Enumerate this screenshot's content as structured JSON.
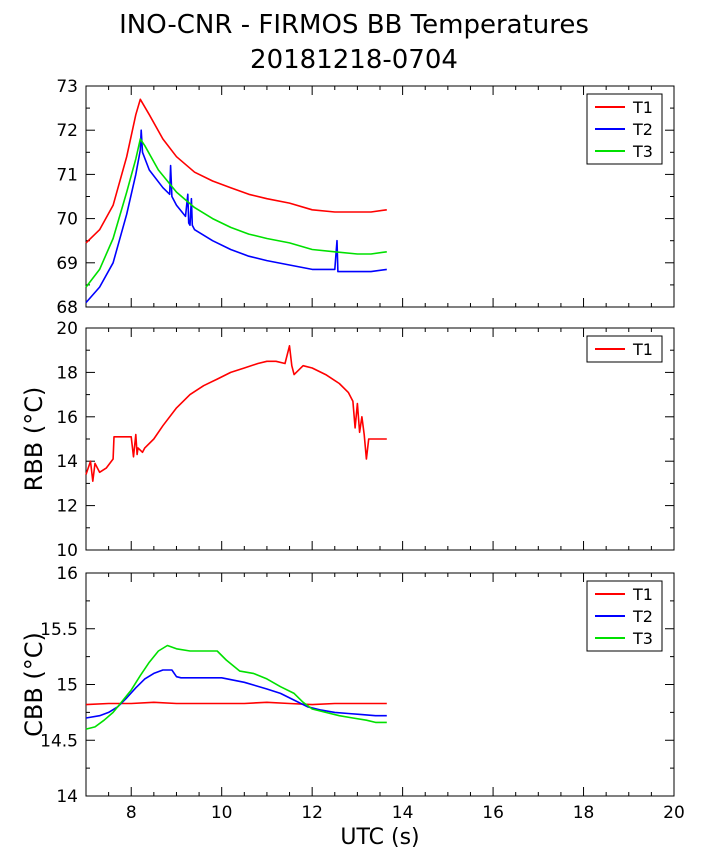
{
  "figure": {
    "title": "INO-CNR - FIRMOS BB Temperatures",
    "subtitle": "20181218-0704"
  },
  "chart_data": [
    {
      "type": "line",
      "title": "",
      "xlabel": "",
      "ylabel": "",
      "xlim": [
        7,
        20
      ],
      "ylim": [
        68,
        73
      ],
      "xticks": [
        8,
        10,
        12,
        14,
        16,
        18,
        20
      ],
      "xticklabels_shown": false,
      "yticks": [
        68,
        69,
        70,
        71,
        72,
        73
      ],
      "grid": false,
      "legend_position": "top-right",
      "series": [
        {
          "name": "T1",
          "color": "#ff0000",
          "x": [
            7.0,
            7.3,
            7.6,
            7.9,
            8.1,
            8.2,
            8.4,
            8.7,
            9.0,
            9.4,
            9.8,
            10.2,
            10.6,
            11.0,
            11.5,
            12.0,
            12.5,
            13.0,
            13.3,
            13.65
          ],
          "y": [
            69.45,
            69.75,
            70.3,
            71.4,
            72.35,
            72.7,
            72.35,
            71.8,
            71.4,
            71.05,
            70.85,
            70.7,
            70.55,
            70.45,
            70.35,
            70.2,
            70.15,
            70.15,
            70.15,
            70.2
          ]
        },
        {
          "name": "T2",
          "color": "#0000ff",
          "x": [
            7.0,
            7.3,
            7.6,
            7.9,
            8.1,
            8.2,
            8.22,
            8.25,
            8.4,
            8.7,
            8.85,
            8.87,
            8.9,
            9.0,
            9.2,
            9.25,
            9.27,
            9.3,
            9.33,
            9.35,
            9.4,
            9.8,
            10.2,
            10.6,
            11.0,
            11.5,
            12.0,
            12.5,
            12.55,
            12.57,
            12.6,
            13.0,
            13.3,
            13.65
          ],
          "y": [
            68.1,
            68.45,
            69.0,
            70.1,
            71.0,
            71.55,
            72.0,
            71.5,
            71.1,
            70.7,
            70.55,
            71.2,
            70.5,
            70.3,
            70.05,
            70.55,
            69.9,
            69.85,
            70.45,
            69.85,
            69.75,
            69.5,
            69.3,
            69.15,
            69.05,
            68.95,
            68.85,
            68.85,
            69.5,
            68.8,
            68.8,
            68.8,
            68.8,
            68.85
          ]
        },
        {
          "name": "T3",
          "color": "#00e000",
          "x": [
            7.0,
            7.3,
            7.6,
            7.9,
            8.1,
            8.2,
            8.3,
            8.6,
            9.0,
            9.4,
            9.8,
            10.2,
            10.6,
            11.0,
            11.5,
            12.0,
            12.5,
            13.0,
            13.3,
            13.65
          ],
          "y": [
            68.45,
            68.85,
            69.55,
            70.6,
            71.35,
            71.8,
            71.65,
            71.1,
            70.6,
            70.25,
            70.0,
            69.8,
            69.65,
            69.55,
            69.45,
            69.3,
            69.25,
            69.2,
            69.2,
            69.25
          ]
        }
      ]
    },
    {
      "type": "line",
      "title": "",
      "xlabel": "",
      "ylabel": "RBB (°C)",
      "xlim": [
        7,
        20
      ],
      "ylim": [
        10,
        20
      ],
      "xticks": [
        8,
        10,
        12,
        14,
        16,
        18,
        20
      ],
      "xticklabels_shown": false,
      "yticks": [
        10,
        12,
        14,
        16,
        18,
        20
      ],
      "grid": false,
      "legend_position": "top-right",
      "series": [
        {
          "name": "T1",
          "color": "#ff0000",
          "x": [
            7.0,
            7.1,
            7.15,
            7.2,
            7.3,
            7.45,
            7.6,
            7.62,
            7.9,
            8.0,
            8.05,
            8.1,
            8.13,
            8.15,
            8.25,
            8.3,
            8.5,
            8.7,
            9.0,
            9.3,
            9.6,
            9.9,
            10.2,
            10.5,
            10.8,
            11.0,
            11.2,
            11.4,
            11.5,
            11.55,
            11.6,
            11.8,
            12.0,
            12.3,
            12.6,
            12.8,
            12.9,
            12.95,
            13.0,
            13.05,
            13.1,
            13.15,
            13.2,
            13.25,
            13.3,
            13.65
          ],
          "y": [
            13.4,
            14.0,
            13.1,
            13.9,
            13.5,
            13.7,
            14.1,
            15.1,
            15.1,
            15.1,
            14.2,
            15.2,
            14.3,
            14.6,
            14.4,
            14.6,
            15.0,
            15.6,
            16.4,
            17.0,
            17.4,
            17.7,
            18.0,
            18.2,
            18.4,
            18.5,
            18.5,
            18.4,
            19.2,
            18.3,
            17.9,
            18.3,
            18.2,
            17.9,
            17.5,
            17.1,
            16.7,
            15.5,
            16.6,
            15.3,
            16.0,
            15.2,
            14.1,
            15.0,
            15.0,
            15.0
          ]
        }
      ]
    },
    {
      "type": "line",
      "title": "",
      "xlabel": "UTC (s)",
      "ylabel": "CBB (°C)",
      "xlim": [
        7,
        20
      ],
      "ylim": [
        14,
        16
      ],
      "xticks": [
        8,
        10,
        12,
        14,
        16,
        18,
        20
      ],
      "xticklabels_shown": true,
      "yticks": [
        14,
        14.5,
        15,
        15.5,
        16
      ],
      "grid": false,
      "legend_position": "top-right",
      "series": [
        {
          "name": "T1",
          "color": "#ff0000",
          "x": [
            7.0,
            7.5,
            8.0,
            8.5,
            9.0,
            9.5,
            10.0,
            10.5,
            11.0,
            11.5,
            12.0,
            12.5,
            13.0,
            13.65
          ],
          "y": [
            14.82,
            14.83,
            14.83,
            14.84,
            14.83,
            14.83,
            14.83,
            14.83,
            14.84,
            14.83,
            14.82,
            14.83,
            14.83,
            14.83
          ]
        },
        {
          "name": "T2",
          "color": "#0000ff",
          "x": [
            7.0,
            7.3,
            7.5,
            7.7,
            7.9,
            8.1,
            8.3,
            8.5,
            8.7,
            8.9,
            9.0,
            9.1,
            9.5,
            10.0,
            10.5,
            11.0,
            11.3,
            11.6,
            11.9,
            12.2,
            12.5,
            12.8,
            13.1,
            13.4,
            13.65
          ],
          "y": [
            14.7,
            14.72,
            14.75,
            14.8,
            14.88,
            14.97,
            15.05,
            15.1,
            15.13,
            15.13,
            15.07,
            15.06,
            15.06,
            15.06,
            15.02,
            14.96,
            14.92,
            14.86,
            14.8,
            14.77,
            14.75,
            14.74,
            14.73,
            14.72,
            14.72
          ]
        },
        {
          "name": "T3",
          "color": "#00e000",
          "x": [
            7.0,
            7.2,
            7.4,
            7.6,
            7.8,
            8.0,
            8.2,
            8.4,
            8.6,
            8.8,
            9.0,
            9.3,
            9.6,
            9.9,
            10.1,
            10.4,
            10.7,
            11.0,
            11.3,
            11.6,
            11.8,
            12.0,
            12.3,
            12.6,
            12.9,
            13.2,
            13.4,
            13.65
          ],
          "y": [
            14.6,
            14.62,
            14.68,
            14.75,
            14.85,
            14.95,
            15.08,
            15.2,
            15.3,
            15.35,
            15.32,
            15.3,
            15.3,
            15.3,
            15.22,
            15.12,
            15.1,
            15.05,
            14.98,
            14.92,
            14.84,
            14.78,
            14.75,
            14.72,
            14.7,
            14.68,
            14.66,
            14.66
          ]
        }
      ]
    }
  ]
}
